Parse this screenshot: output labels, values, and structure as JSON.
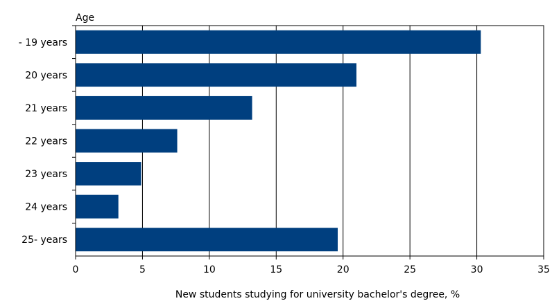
{
  "chart_data": {
    "type": "bar",
    "orientation": "horizontal",
    "y_axis_title": "Age",
    "xlabel": "New students studying for university bachelor's degree, %",
    "categories": [
      "- 19 years",
      "20 years",
      "21 years",
      "22 years",
      "23 years",
      "24 years",
      "25- years"
    ],
    "values": [
      30.3,
      21.0,
      13.2,
      7.6,
      4.9,
      3.2,
      19.6
    ],
    "xlim": [
      0,
      35
    ],
    "xticks": [
      "0",
      "5",
      "10",
      "15",
      "20",
      "25",
      "30",
      "35"
    ],
    "grid": "vertical",
    "legend": "none",
    "bar_color": "#003f7f"
  }
}
